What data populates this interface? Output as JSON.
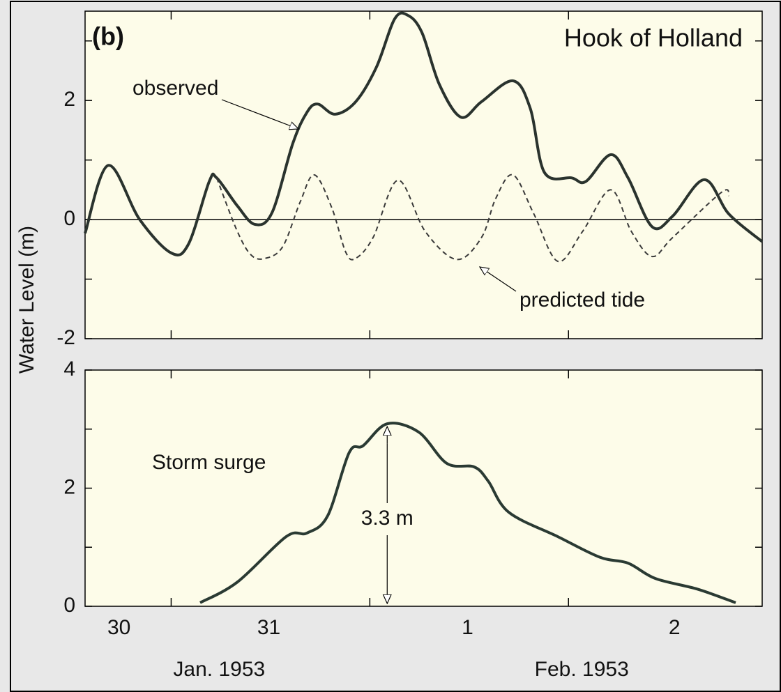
{
  "chart_data": [
    {
      "type": "line",
      "panel_label": "(b)",
      "title": "Hook of Holland",
      "ylabel": "Water Level (m)",
      "xlim": [
        13.6,
        95.4
      ],
      "xticks": [
        24,
        48,
        72
      ],
      "ylim": [
        -2,
        3.5
      ],
      "yticks": [
        -2,
        0,
        2
      ],
      "yminorticks": [
        -1,
        1,
        3
      ],
      "zero_line": true,
      "series": [
        {
          "name": "observed",
          "color": "#2a332e",
          "style": "solid",
          "x": [
            13.6,
            16.4,
            20.2,
            24,
            26.1,
            28.6,
            29.5,
            32,
            34.1,
            36.2,
            38.7,
            40.4,
            41.7,
            43.8,
            46.3,
            48.8,
            51,
            52.6,
            54.3,
            56.4,
            59,
            61.5,
            65.3,
            67.4,
            69.1,
            72.4,
            74.1,
            77.1,
            79.2,
            82.1,
            84.6,
            88.4,
            91.4,
            95.4
          ],
          "values": [
            -0.23,
            0.91,
            0,
            -0.56,
            -0.41,
            0.64,
            0.7,
            0.23,
            -0.08,
            0.12,
            1.28,
            1.8,
            1.94,
            1.77,
            1.98,
            2.56,
            3.37,
            3.43,
            3.14,
            2.27,
            1.72,
            1.98,
            2.33,
            1.86,
            0.79,
            0.7,
            0.64,
            1.09,
            0.7,
            -0.12,
            0.06,
            0.67,
            0.09,
            -0.37
          ]
        },
        {
          "name": "predicted tide",
          "color": "#3a3a3a",
          "style": "dashed",
          "x": [
            29.5,
            32,
            33.7,
            35.4,
            37.5,
            39.6,
            41.3,
            43.4,
            45.1,
            46.3,
            48.4,
            51.4,
            54.7,
            58.5,
            61.5,
            63.2,
            65.3,
            67.8,
            70.7,
            73.7,
            77.1,
            79.6,
            82.1,
            84.6,
            90.5,
            91.4
          ],
          "values": [
            0.7,
            -0.2,
            -0.6,
            -0.65,
            -0.45,
            0.3,
            0.75,
            0.2,
            -0.55,
            -0.65,
            -0.3,
            0.66,
            -0.2,
            -0.67,
            -0.3,
            0.35,
            0.75,
            0.1,
            -0.7,
            -0.2,
            0.5,
            -0.2,
            -0.62,
            -0.3,
            0.46,
            0.4
          ]
        }
      ]
    },
    {
      "type": "line",
      "xlim": [
        13.6,
        95.4
      ],
      "xticks": [
        24,
        48,
        72
      ],
      "xlabels": [
        {
          "value": 17.7,
          "label": "30"
        },
        {
          "value": 35.8,
          "label": "31"
        },
        {
          "value": 59.8,
          "label": "1"
        },
        {
          "value": 84.8,
          "label": "2"
        }
      ],
      "month_labels": [
        {
          "value": 29.8,
          "label": "Jan. 1953"
        },
        {
          "value": 73.6,
          "label": "Feb. 1953"
        }
      ],
      "ylim": [
        0,
        4
      ],
      "yticks": [
        0,
        2,
        4
      ],
      "yminorticks": [
        1,
        3
      ],
      "annotation": "3.3 m",
      "series": [
        {
          "name": "Storm surge",
          "color": "#2a3a33",
          "style": "solid",
          "x": [
            27.5,
            32,
            37.9,
            40.4,
            42.9,
            45.5,
            47.2,
            50.1,
            53.9,
            57.3,
            60.6,
            62.3,
            64.8,
            70.7,
            75.8,
            79.2,
            82.5,
            87.6,
            92.2
          ],
          "values": [
            0.06,
            0.41,
            1.18,
            1.24,
            1.53,
            2.6,
            2.72,
            3.09,
            2.95,
            2.42,
            2.36,
            2.12,
            1.59,
            1.18,
            0.83,
            0.73,
            0.47,
            0.29,
            0.06
          ]
        }
      ]
    }
  ]
}
